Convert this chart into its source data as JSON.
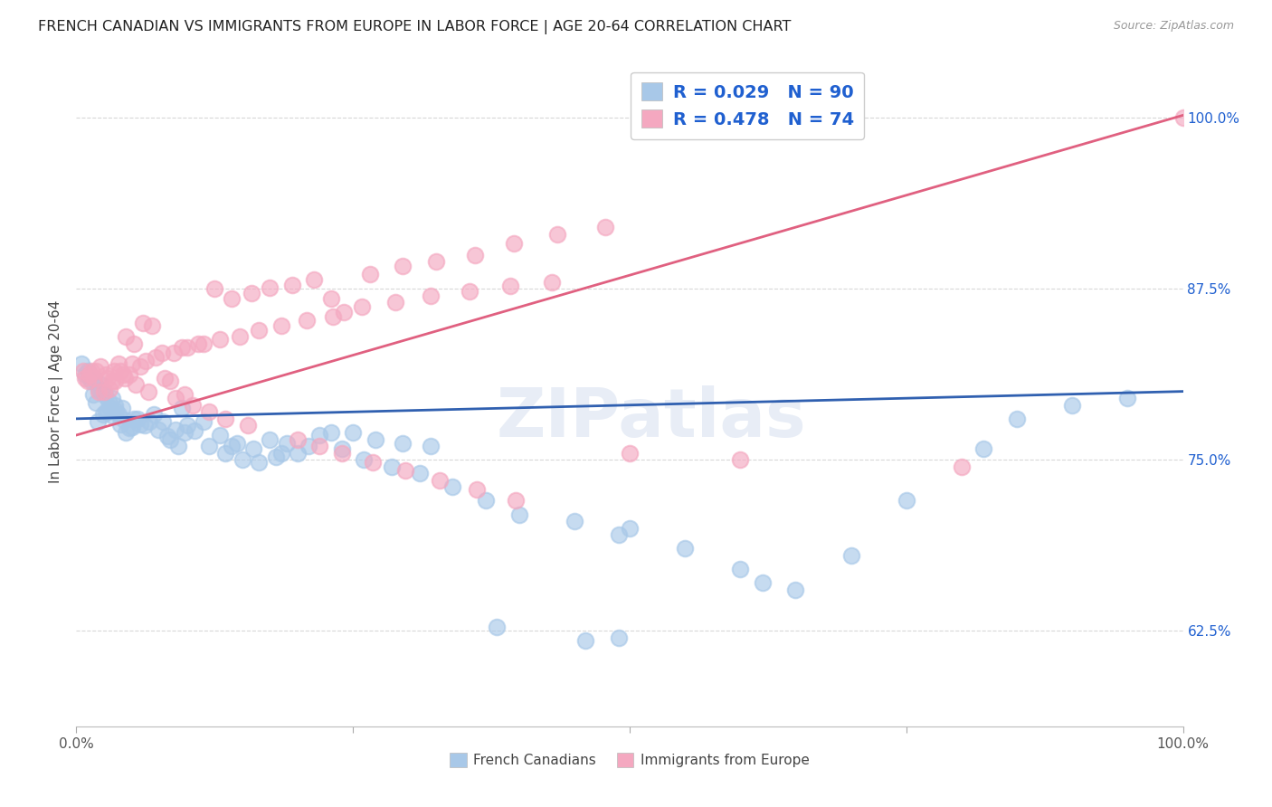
{
  "title": "FRENCH CANADIAN VS IMMIGRANTS FROM EUROPE IN LABOR FORCE | AGE 20-64 CORRELATION CHART",
  "source": "Source: ZipAtlas.com",
  "ylabel": "In Labor Force | Age 20-64",
  "xlim": [
    0.0,
    1.0
  ],
  "ylim": [
    0.555,
    1.045
  ],
  "xticks": [
    0.0,
    0.25,
    0.5,
    0.75,
    1.0
  ],
  "xticklabels": [
    "0.0%",
    "",
    "",
    "",
    "100.0%"
  ],
  "ytick_positions": [
    0.625,
    0.75,
    0.875,
    1.0
  ],
  "ytick_labels": [
    "62.5%",
    "75.0%",
    "87.5%",
    "100.0%"
  ],
  "color_blue": "#a8c8e8",
  "color_pink": "#f4a8c0",
  "color_line_blue": "#3060b0",
  "color_line_pink": "#e06080",
  "color_text_blue": "#2060d0",
  "watermark": "ZIPatlas",
  "blue_points_x": [
    0.005,
    0.008,
    0.01,
    0.012,
    0.014,
    0.015,
    0.016,
    0.018,
    0.019,
    0.02,
    0.022,
    0.023,
    0.024,
    0.025,
    0.026,
    0.027,
    0.028,
    0.029,
    0.031,
    0.032,
    0.033,
    0.035,
    0.036,
    0.038,
    0.04,
    0.041,
    0.043,
    0.045,
    0.048,
    0.05,
    0.052,
    0.055,
    0.058,
    0.062,
    0.066,
    0.07,
    0.074,
    0.078,
    0.082,
    0.085,
    0.09,
    0.092,
    0.095,
    0.098,
    0.1,
    0.107,
    0.115,
    0.12,
    0.13,
    0.135,
    0.14,
    0.145,
    0.15,
    0.16,
    0.165,
    0.175,
    0.18,
    0.185,
    0.19,
    0.2,
    0.21,
    0.22,
    0.23,
    0.24,
    0.25,
    0.26,
    0.27,
    0.285,
    0.295,
    0.31,
    0.32,
    0.34,
    0.37,
    0.4,
    0.45,
    0.49,
    0.5,
    0.55,
    0.6,
    0.62,
    0.65,
    0.7,
    0.75,
    0.82,
    0.85,
    0.9,
    0.95,
    0.49,
    0.38,
    0.46
  ],
  "blue_points_y": [
    0.82,
    0.812,
    0.815,
    0.81,
    0.808,
    0.798,
    0.81,
    0.792,
    0.778,
    0.802,
    0.805,
    0.8,
    0.783,
    0.8,
    0.797,
    0.785,
    0.785,
    0.793,
    0.788,
    0.795,
    0.782,
    0.79,
    0.786,
    0.783,
    0.776,
    0.788,
    0.779,
    0.77,
    0.773,
    0.774,
    0.78,
    0.78,
    0.776,
    0.775,
    0.778,
    0.783,
    0.772,
    0.778,
    0.767,
    0.765,
    0.772,
    0.76,
    0.788,
    0.77,
    0.775,
    0.771,
    0.778,
    0.76,
    0.768,
    0.755,
    0.76,
    0.762,
    0.75,
    0.758,
    0.748,
    0.765,
    0.752,
    0.755,
    0.762,
    0.755,
    0.76,
    0.768,
    0.77,
    0.758,
    0.77,
    0.75,
    0.765,
    0.745,
    0.762,
    0.74,
    0.76,
    0.73,
    0.72,
    0.71,
    0.705,
    0.695,
    0.7,
    0.685,
    0.67,
    0.66,
    0.655,
    0.68,
    0.72,
    0.758,
    0.78,
    0.79,
    0.795,
    0.62,
    0.628,
    0.618
  ],
  "pink_points_x": [
    0.006,
    0.008,
    0.01,
    0.012,
    0.014,
    0.016,
    0.018,
    0.02,
    0.022,
    0.025,
    0.027,
    0.028,
    0.03,
    0.032,
    0.034,
    0.035,
    0.038,
    0.04,
    0.042,
    0.044,
    0.045,
    0.048,
    0.05,
    0.052,
    0.054,
    0.058,
    0.06,
    0.063,
    0.065,
    0.068,
    0.072,
    0.077,
    0.08,
    0.085,
    0.088,
    0.09,
    0.095,
    0.098,
    0.1,
    0.105,
    0.11,
    0.115,
    0.12,
    0.125,
    0.13,
    0.135,
    0.14,
    0.148,
    0.155,
    0.158,
    0.165,
    0.175,
    0.185,
    0.195,
    0.2,
    0.208,
    0.215,
    0.22,
    0.23,
    0.232,
    0.24,
    0.242,
    0.258,
    0.265,
    0.268,
    0.288,
    0.295,
    0.297,
    0.32,
    0.325,
    0.328,
    0.355,
    0.36,
    0.362,
    0.392,
    0.395,
    0.397,
    0.43,
    0.435,
    0.478,
    0.5,
    0.6,
    0.8,
    1.0
  ],
  "pink_points_y": [
    0.815,
    0.81,
    0.808,
    0.812,
    0.815,
    0.81,
    0.815,
    0.8,
    0.818,
    0.8,
    0.812,
    0.81,
    0.802,
    0.808,
    0.815,
    0.808,
    0.82,
    0.815,
    0.812,
    0.81,
    0.84,
    0.812,
    0.82,
    0.835,
    0.805,
    0.818,
    0.85,
    0.822,
    0.8,
    0.848,
    0.825,
    0.828,
    0.81,
    0.808,
    0.828,
    0.795,
    0.832,
    0.798,
    0.832,
    0.79,
    0.835,
    0.835,
    0.785,
    0.875,
    0.838,
    0.78,
    0.868,
    0.84,
    0.775,
    0.872,
    0.845,
    0.876,
    0.848,
    0.878,
    0.765,
    0.852,
    0.882,
    0.76,
    0.868,
    0.855,
    0.755,
    0.858,
    0.862,
    0.886,
    0.748,
    0.865,
    0.892,
    0.742,
    0.87,
    0.895,
    0.735,
    0.873,
    0.9,
    0.728,
    0.877,
    0.908,
    0.72,
    0.88,
    0.915,
    0.92,
    0.755,
    0.75,
    0.745,
    1.0
  ],
  "blue_line_x": [
    0.0,
    1.0
  ],
  "blue_line_y": [
    0.78,
    0.8
  ],
  "pink_line_x": [
    0.0,
    1.0
  ],
  "pink_line_y": [
    0.768,
    1.002
  ],
  "background_color": "#ffffff",
  "grid_color": "#d8d8d8"
}
